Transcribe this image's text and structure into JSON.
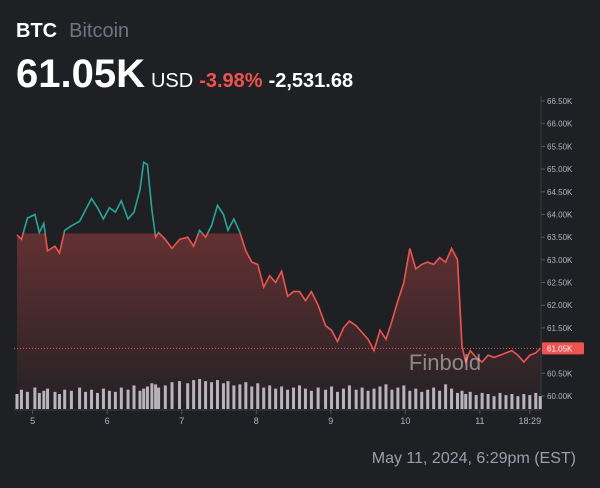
{
  "chart_data": {
    "type": "line",
    "symbol": "BTC",
    "name": "Bitcoin",
    "price": {
      "value": 61.05,
      "label": "61.05K"
    },
    "currency": "USD",
    "change_pct": {
      "value": -3.98,
      "label": "-3.98%"
    },
    "change": {
      "value": -2531.68,
      "label": "-2,531.68"
    },
    "watermark": "Finbold",
    "timestamp": "May 11, 2024, 6:29pm (EST)",
    "colors": {
      "up": "#26a69a",
      "down": "#ef5350"
    },
    "volume_color": "#d1d4dc",
    "x": [
      4.79,
      4.85,
      4.93,
      5.03,
      5.09,
      5.15,
      5.2,
      5.3,
      5.36,
      5.43,
      5.52,
      5.63,
      5.71,
      5.79,
      5.87,
      5.95,
      6.03,
      6.11,
      6.19,
      6.28,
      6.36,
      6.44,
      6.49,
      6.54,
      6.6,
      6.65,
      6.69,
      6.78,
      6.87,
      6.97,
      7.08,
      7.16,
      7.24,
      7.32,
      7.4,
      7.48,
      7.56,
      7.62,
      7.7,
      7.78,
      7.86,
      7.94,
      8.02,
      8.1,
      8.18,
      8.26,
      8.34,
      8.42,
      8.5,
      8.58,
      8.66,
      8.74,
      8.83,
      8.93,
      9.01,
      9.09,
      9.17,
      9.25,
      9.34,
      9.42,
      9.5,
      9.58,
      9.66,
      9.74,
      9.82,
      9.9,
      9.98,
      10.06,
      10.14,
      10.22,
      10.3,
      10.38,
      10.46,
      10.54,
      10.62,
      10.7,
      10.76,
      10.81,
      10.87,
      10.95,
      11.03,
      11.11,
      11.19,
      11.27,
      11.35,
      11.43,
      11.51,
      11.59,
      11.67,
      11.75,
      11.81
    ],
    "values": [
      63.55,
      63.45,
      63.92,
      64.0,
      63.6,
      63.8,
      63.2,
      63.3,
      63.15,
      63.65,
      63.75,
      63.85,
      64.1,
      64.35,
      64.15,
      63.9,
      64.15,
      64.05,
      64.3,
      63.9,
      64.05,
      64.55,
      65.15,
      65.1,
      64.1,
      63.5,
      63.6,
      63.45,
      63.25,
      63.45,
      63.5,
      63.3,
      63.65,
      63.5,
      63.75,
      64.2,
      64.0,
      63.65,
      63.9,
      63.6,
      63.2,
      62.95,
      62.9,
      62.4,
      62.65,
      62.5,
      62.75,
      62.2,
      62.3,
      62.3,
      62.1,
      62.3,
      62.0,
      61.55,
      61.45,
      61.2,
      61.5,
      61.65,
      61.55,
      61.4,
      61.25,
      61.0,
      61.45,
      61.25,
      61.65,
      62.1,
      62.5,
      63.25,
      62.8,
      62.9,
      62.95,
      62.9,
      63.05,
      62.95,
      63.25,
      63.0,
      61.1,
      60.75,
      61.0,
      60.85,
      60.75,
      60.9,
      60.85,
      60.9,
      60.95,
      61.0,
      60.9,
      60.75,
      60.9,
      60.95,
      61.05
    ],
    "volume": [
      14,
      18,
      16,
      20,
      15,
      17,
      19,
      16,
      14,
      18,
      17,
      20,
      16,
      18,
      15,
      19,
      17,
      16,
      20,
      18,
      22,
      17,
      19,
      21,
      24,
      23,
      20,
      22,
      25,
      26,
      24,
      27,
      28,
      26,
      25,
      27,
      24,
      26,
      22,
      23,
      25,
      21,
      24,
      20,
      22,
      19,
      21,
      18,
      20,
      22,
      19,
      17,
      20,
      18,
      21,
      16,
      19,
      22,
      18,
      20,
      17,
      19,
      21,
      23,
      18,
      20,
      22,
      17,
      19,
      16,
      18,
      20,
      17,
      23,
      19,
      15,
      17,
      14,
      16,
      13,
      15,
      14,
      12,
      15,
      13,
      14,
      12,
      14,
      13,
      15,
      12
    ],
    "xlim": [
      4.75,
      11.82
    ],
    "ylim": [
      60.0,
      66.5
    ],
    "xticks": [
      5,
      6,
      7,
      8,
      9,
      10,
      11,
      {
        "value": 11.67,
        "label": "18:29"
      }
    ],
    "yticks": [
      {
        "value": 60.0,
        "label": "60.00K"
      },
      {
        "value": 60.5,
        "label": "60.50K"
      },
      {
        "value": 61.0,
        "label": "61.00K"
      },
      {
        "value": 61.5,
        "label": "61.50K"
      },
      {
        "value": 62.0,
        "label": "62.00K"
      },
      {
        "value": 62.5,
        "label": "62.50K"
      },
      {
        "value": 63.0,
        "label": "63.00K"
      },
      {
        "value": 63.5,
        "label": "63.50K"
      },
      {
        "value": 64.0,
        "label": "64.00K"
      },
      {
        "value": 64.5,
        "label": "64.50K"
      },
      {
        "value": 65.0,
        "label": "65.00K"
      },
      {
        "value": 65.5,
        "label": "65.50K"
      },
      {
        "value": 66.0,
        "label": "66.00K"
      },
      {
        "value": 66.5,
        "label": "66.50K"
      }
    ]
  }
}
